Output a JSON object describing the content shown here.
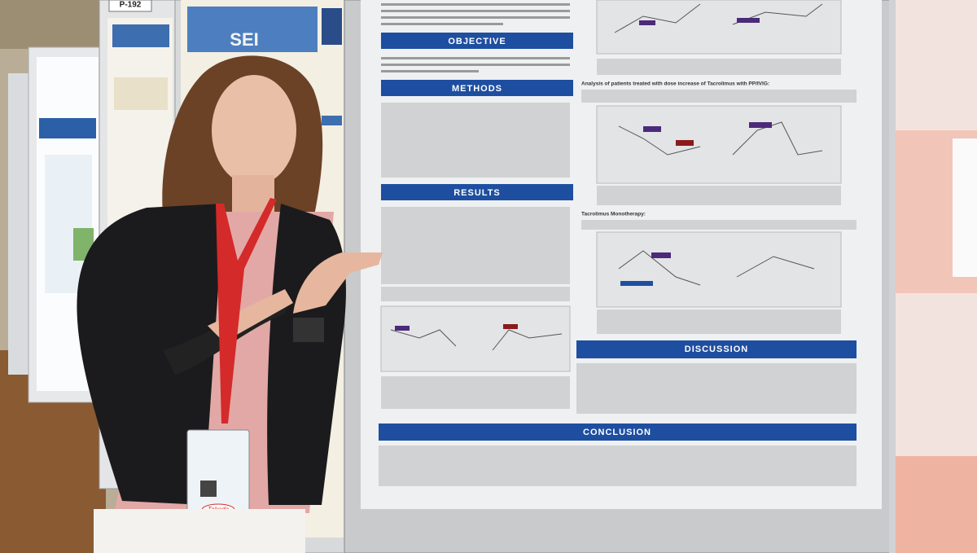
{
  "poster": {
    "board_number": "P-192",
    "sections": [
      "OBJECTIVE",
      "METHODS",
      "RESULTS",
      "DISCUSSION",
      "CONCLUSION"
    ],
    "subheadings": [
      "Analysis of patients treated with dose increase of Tacrolimus with PP/IVIG:",
      "Tacrolimus Monotherapy:"
    ]
  },
  "left_poster": {
    "logo": "SEI"
  },
  "badge": {
    "brand": "Takeda"
  }
}
